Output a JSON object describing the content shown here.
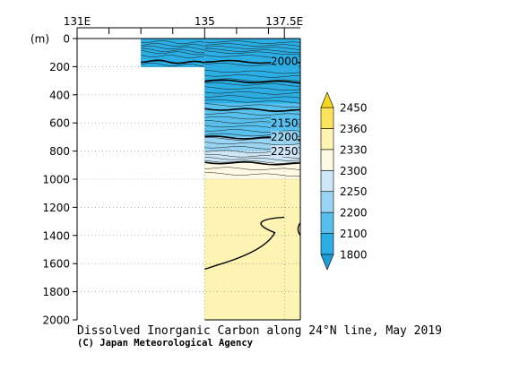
{
  "chart_data": {
    "type": "heatmap",
    "title": "Dissolved Inorganic Carbon along 24°N line, May 2019",
    "credit": "(C) Japan Meteorological Agency",
    "x_ticks": [
      {
        "value": 131,
        "label": "131E"
      },
      {
        "value": 135,
        "label": "135"
      },
      {
        "value": 137.5,
        "label": "137.5E"
      }
    ],
    "x_minor_ticks": [
      132,
      133,
      134,
      136,
      137
    ],
    "xlim": [
      131,
      138
    ],
    "ylabel": "(m)",
    "y_ticks": [
      0,
      200,
      400,
      600,
      800,
      1000,
      1200,
      1400,
      1600,
      1800,
      2000
    ],
    "ylim": [
      0,
      2000
    ],
    "data_region": {
      "shallow_section": {
        "lon": [
          133,
          135
        ],
        "depth": [
          0,
          200
        ]
      },
      "deep_section": {
        "lon": [
          135,
          138
        ],
        "depth": [
          0,
          2000
        ]
      }
    },
    "levels": [
      1800,
      2100,
      2200,
      2250,
      2300,
      2330,
      2360,
      2450
    ],
    "bands": [
      {
        "from": 1800,
        "to": 2100,
        "color": "#2aaee3"
      },
      {
        "from": 2100,
        "to": 2200,
        "color": "#58c0ec"
      },
      {
        "from": 2200,
        "to": 2250,
        "color": "#9ad4f3"
      },
      {
        "from": 2250,
        "to": 2300,
        "color": "#cfe6f7"
      },
      {
        "from": 2300,
        "to": 2330,
        "color": "#fdf9e2"
      },
      {
        "from": 2330,
        "to": 2360,
        "color": "#fdf3b3"
      },
      {
        "from": 2360,
        "to": 2450,
        "color": "#fbe45c"
      }
    ],
    "colorbar_tip_colors": {
      "low": "#1e9bd8",
      "high": "#f5d71e"
    },
    "contour_labels": [
      {
        "text": "2000",
        "lon": 137.5,
        "depth": 160
      },
      {
        "text": "2150",
        "lon": 137.5,
        "depth": 600
      },
      {
        "text": "2200",
        "lon": 137.5,
        "depth": 700
      },
      {
        "text": "2250",
        "lon": 137.5,
        "depth": 800
      }
    ],
    "profile": [
      {
        "depth": 0,
        "value": 1980
      },
      {
        "depth": 100,
        "value": 1995
      },
      {
        "depth": 200,
        "value": 2020
      },
      {
        "depth": 400,
        "value": 2080
      },
      {
        "depth": 600,
        "value": 2150
      },
      {
        "depth": 700,
        "value": 2200
      },
      {
        "depth": 800,
        "value": 2250
      },
      {
        "depth": 880,
        "value": 2300
      },
      {
        "depth": 1000,
        "value": 2330
      },
      {
        "depth": 2000,
        "value": 2345
      }
    ],
    "contour_depths_thin": [
      20,
      40,
      60,
      80,
      95,
      120,
      180,
      230,
      260,
      290,
      320,
      350,
      380,
      410,
      440,
      470,
      500,
      530,
      560,
      590,
      620,
      650,
      680,
      710,
      740,
      770,
      800,
      830,
      850,
      870,
      920,
      960
    ],
    "contour_depths_bold": [
      160,
      300,
      500,
      700,
      880
    ],
    "closed_contour": {
      "points": [
        [
          137.5,
          1270
        ],
        [
          136.2,
          1290
        ],
        [
          137.2,
          1380
        ],
        [
          136.9,
          1510
        ],
        [
          135.4,
          1610
        ],
        [
          135,
          1640
        ]
      ]
    }
  }
}
